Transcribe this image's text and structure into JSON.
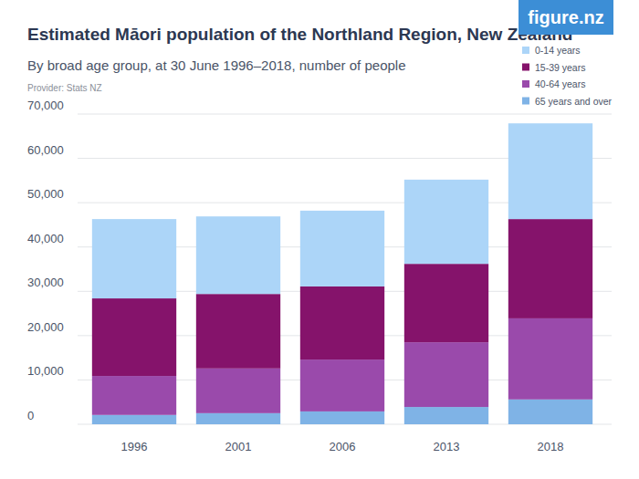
{
  "chart_data": {
    "type": "bar",
    "stacked": true,
    "title": "Estimated Māori population of the Northland Region, New Zealand",
    "subtitle": "By broad age group, at 30 June 1996–2018, number of people",
    "source": "Provider: Stats NZ",
    "logo": "figure.nz",
    "categories": [
      "1996",
      "2001",
      "2006",
      "2013",
      "2018"
    ],
    "series": [
      {
        "name": "0-14 years",
        "color": "#acd5f8",
        "values": [
          17900,
          17500,
          17100,
          19000,
          21600
        ]
      },
      {
        "name": "15-39 years",
        "color": "#85136b",
        "values": [
          17500,
          16800,
          16500,
          17700,
          22400
        ]
      },
      {
        "name": "40-64 years",
        "color": "#9a4aab",
        "values": [
          8800,
          10100,
          11700,
          14600,
          18300
        ]
      },
      {
        "name": "65 years and over",
        "color": "#7fb3e6",
        "values": [
          2100,
          2500,
          2900,
          3900,
          5600
        ]
      }
    ],
    "ylim": [
      0,
      70000
    ],
    "yticks": [
      0,
      {
        "value": 10000,
        "label": "10,000"
      },
      {
        "value": 20000,
        "label": "20,000"
      },
      {
        "value": 30000,
        "label": "30,000"
      },
      {
        "value": 40000,
        "label": "40,000"
      },
      {
        "value": 50000,
        "label": "50,000"
      },
      {
        "value": 60000,
        "label": "60,000"
      },
      {
        "value": 70000,
        "label": "70,000"
      }
    ],
    "grid": true,
    "legend": "top-right"
  }
}
